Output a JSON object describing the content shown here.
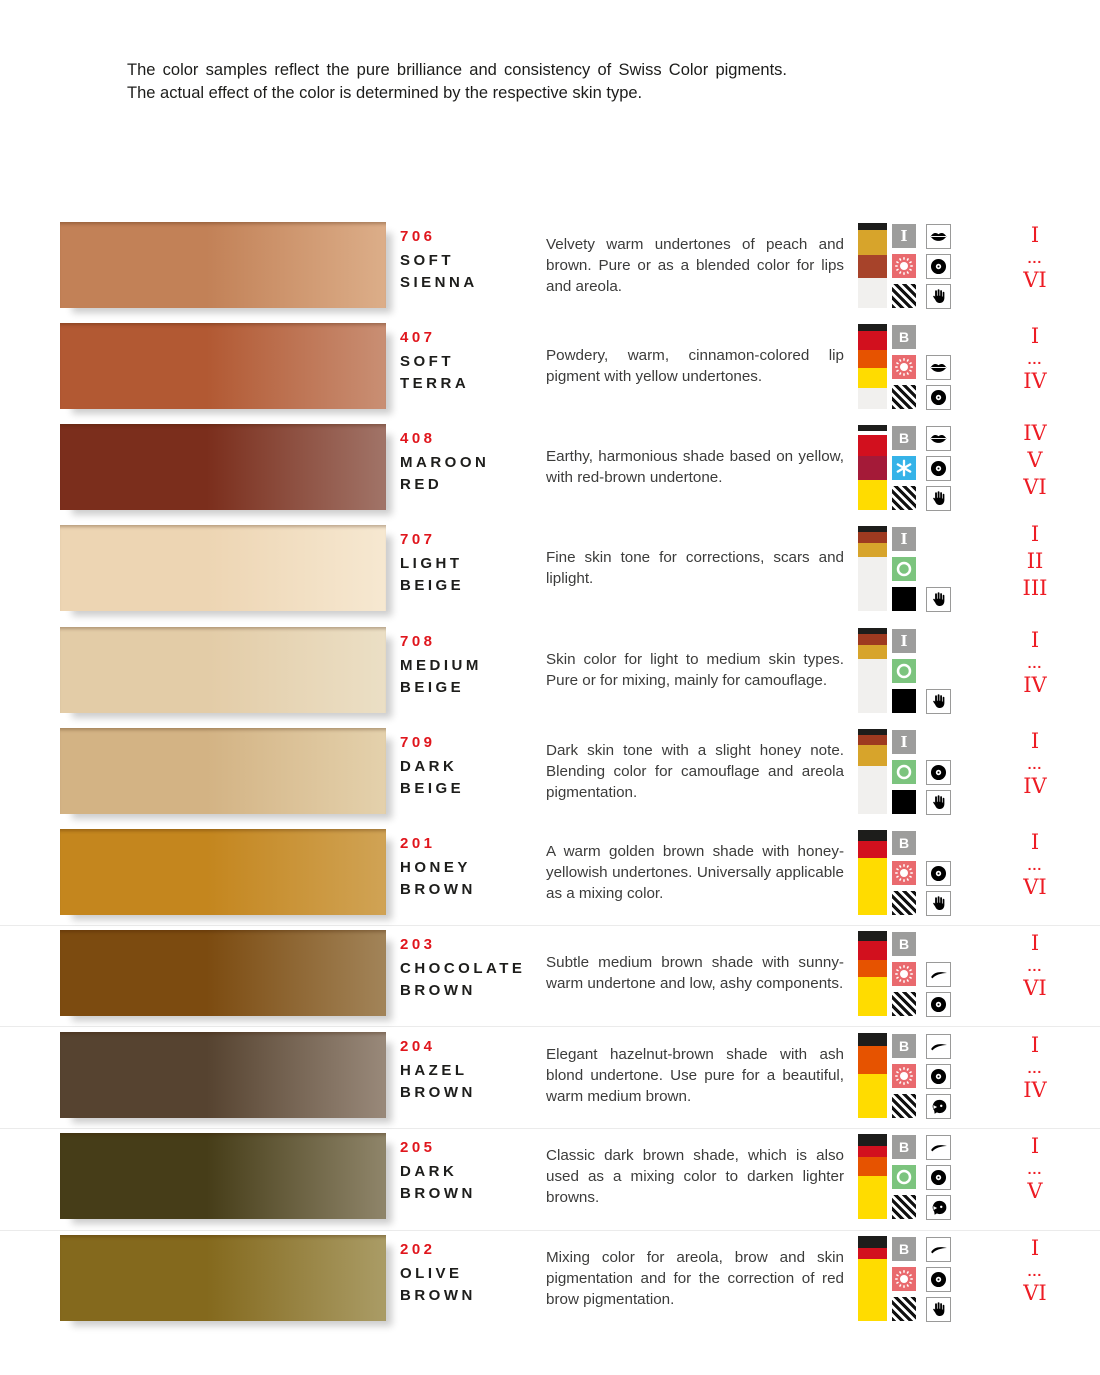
{
  "colors": {
    "accent_red": "#e0161d",
    "numeral_red": "#ed1c24",
    "text_dark": "#1d1d1b",
    "text_body": "#3c3c3b",
    "badge_gray": "#9d9d9c",
    "badge_pink": "#e96a6e",
    "badge_blue": "#35b3e8",
    "badge_green": "#7cc47e",
    "badge_black": "#000000"
  },
  "header": {
    "text": "The color samples reflect the pure brilliance and consistency of Swiss Color pigments. The actual effect of the color is determined by the respective skin type."
  },
  "icon_styles": {
    "badge-i": {
      "bg": "#9d9d9c"
    },
    "badge-b": {
      "bg": "#9d9d9c"
    },
    "sun": {
      "bg": "#e96a6e"
    },
    "snowflake": {
      "bg": "#35b3e8"
    },
    "ring": {
      "bg": "#7cc47e"
    },
    "black": {
      "bg": "#000000"
    },
    "stripes": {
      "bg": "stripes"
    }
  },
  "rows": [
    {
      "code": "706",
      "name": "SOFT SIENNA",
      "description": "Velvety warm undertones of peach and brown. Pure or as a blended color for lips and areola.",
      "swatch": {
        "from": "#c28157",
        "to": "#dcae89"
      },
      "composition": [
        {
          "color": "#1d1d1b",
          "pct": 8
        },
        {
          "color": "#d7a42b",
          "pct": 30
        },
        {
          "color": "#a7432a",
          "pct": 27
        },
        {
          "color": "#f1f0ee",
          "pct": 35
        }
      ],
      "badges": [
        "badge-i",
        "sun",
        "stripes"
      ],
      "areas": [
        "lips",
        "areola",
        "hand"
      ],
      "skin_types": [
        "I",
        "...",
        "VI"
      ]
    },
    {
      "code": "407",
      "name": "SOFT TERRA",
      "description": "Powdery, warm, cinnamon-colored lip pigment with yellow undertones.",
      "swatch": {
        "from": "#b25933",
        "to": "#c98f74"
      },
      "composition": [
        {
          "color": "#1d1d1b",
          "pct": 8
        },
        {
          "color": "#d2101e",
          "pct": 23
        },
        {
          "color": "#e65300",
          "pct": 21
        },
        {
          "color": "#ffdc00",
          "pct": 23
        },
        {
          "color": "#f1f0ee",
          "pct": 25
        }
      ],
      "badges": [
        "badge-b",
        "sun",
        "stripes"
      ],
      "areas": [
        null,
        "lips",
        "areola"
      ],
      "skin_types": [
        "I",
        "...",
        "IV"
      ]
    },
    {
      "code": "408",
      "name": "MAROON RED",
      "description": "Earthy, harmonious shade based on yellow, with red-brown undertone.",
      "swatch": {
        "from": "#7b2e1c",
        "to": "#a17468"
      },
      "composition": [
        {
          "color": "#1d1d1b",
          "pct": 7
        },
        {
          "color": "#ffffff",
          "pct": 5
        },
        {
          "color": "#d2101e",
          "pct": 24
        },
        {
          "color": "#a41a38",
          "pct": 29
        },
        {
          "color": "#ffdc00",
          "pct": 35
        }
      ],
      "badges": [
        "badge-b",
        "snowflake",
        "stripes"
      ],
      "areas": [
        "lips",
        "areola",
        "hand"
      ],
      "skin_types": [
        "IV",
        "V",
        "VI"
      ]
    },
    {
      "code": "707",
      "name": "LIGHT BEIGE",
      "description": "Fine skin tone for corrections, scars and liplight.",
      "swatch": {
        "from": "#edd5b3",
        "to": "#f6e8d1"
      },
      "composition": [
        {
          "color": "#1d1d1b",
          "pct": 7
        },
        {
          "color": "#9e3a20",
          "pct": 13
        },
        {
          "color": "#d7a42b",
          "pct": 16
        },
        {
          "color": "#f1f0ee",
          "pct": 64
        }
      ],
      "badges": [
        "badge-i",
        "ring",
        "black"
      ],
      "areas": [
        null,
        null,
        "hand"
      ],
      "skin_types": [
        "I",
        "II",
        "III"
      ]
    },
    {
      "code": "708",
      "name": "MEDIUM BEIGE",
      "description": "Skin color for light to medium skin types. Pure or for mixing, mainly for camouflage.",
      "swatch": {
        "from": "#e3cca7",
        "to": "#ebdfc5"
      },
      "composition": [
        {
          "color": "#1d1d1b",
          "pct": 7
        },
        {
          "color": "#9e3a20",
          "pct": 13
        },
        {
          "color": "#d7a42b",
          "pct": 16
        },
        {
          "color": "#f1f0ee",
          "pct": 64
        }
      ],
      "badges": [
        "badge-i",
        "ring",
        "black"
      ],
      "areas": [
        null,
        null,
        "hand"
      ],
      "skin_types": [
        "I",
        "...",
        "IV"
      ]
    },
    {
      "code": "709",
      "name": "DARK BEIGE",
      "description": "Dark skin tone with a slight honey note. Blending color for camouflage and areola pigmentation.",
      "swatch": {
        "from": "#d3b384",
        "to": "#e4d1ac"
      },
      "composition": [
        {
          "color": "#1d1d1b",
          "pct": 7
        },
        {
          "color": "#9e3a20",
          "pct": 12
        },
        {
          "color": "#d7a42b",
          "pct": 24
        },
        {
          "color": "#f1f0ee",
          "pct": 57
        }
      ],
      "badges": [
        "badge-i",
        "ring",
        "black"
      ],
      "areas": [
        null,
        "areola",
        "hand"
      ],
      "skin_types": [
        "I",
        "...",
        "IV"
      ]
    },
    {
      "code": "201",
      "name": "HONEY BROWN",
      "description": "A warm golden brown shade with honey-yellowish undertones. Universally applicable as a mixing color.",
      "swatch": {
        "from": "#c4861e",
        "to": "#d0a355"
      },
      "composition": [
        {
          "color": "#1d1d1b",
          "pct": 13
        },
        {
          "color": "#d2101e",
          "pct": 20
        },
        {
          "color": "#ffdc00",
          "pct": 67
        }
      ],
      "badges": [
        "badge-b",
        "sun",
        "stripes"
      ],
      "areas": [
        null,
        "areola",
        "hand"
      ],
      "skin_types": [
        "I",
        "...",
        "VI"
      ]
    },
    {
      "code": "203",
      "name": "CHOCOLATE BROWN",
      "description": "Subtle medium brown shade with sunny-warm undertone and low, ashy components.",
      "swatch": {
        "from": "#7c4b10",
        "to": "#a28459"
      },
      "composition": [
        {
          "color": "#1d1d1b",
          "pct": 12
        },
        {
          "color": "#d2101e",
          "pct": 22
        },
        {
          "color": "#e65300",
          "pct": 20
        },
        {
          "color": "#ffdc00",
          "pct": 46
        }
      ],
      "badges": [
        "badge-b",
        "sun",
        "stripes"
      ],
      "areas": [
        null,
        "eyebrow",
        "areola"
      ],
      "skin_types": [
        "I",
        "...",
        "VI"
      ]
    },
    {
      "code": "204",
      "name": "HAZEL BROWN",
      "description": "Elegant hazelnut-brown shade with ash blond undertone. Use pure for a beautiful, warm medium brown.",
      "swatch": {
        "from": "#564330",
        "to": "#99897a"
      },
      "composition": [
        {
          "color": "#1d1d1b",
          "pct": 15
        },
        {
          "color": "#e65300",
          "pct": 33
        },
        {
          "color": "#ffdc00",
          "pct": 52
        }
      ],
      "badges": [
        "badge-b",
        "sun",
        "stripes"
      ],
      "areas": [
        "eyebrow",
        "areola",
        "head"
      ],
      "skin_types": [
        "I",
        "...",
        "IV"
      ]
    },
    {
      "code": "205",
      "name": "DARK BROWN",
      "description": "Classic dark brown shade, which is also used as a mixing color to darken lighter browns.",
      "swatch": {
        "from": "#463d18",
        "to": "#8f856a"
      },
      "composition": [
        {
          "color": "#1d1d1b",
          "pct": 14
        },
        {
          "color": "#d2101e",
          "pct": 13
        },
        {
          "color": "#e65300",
          "pct": 22
        },
        {
          "color": "#ffdc00",
          "pct": 51
        }
      ],
      "badges": [
        "badge-b",
        "ring",
        "stripes"
      ],
      "areas": [
        "eyebrow",
        "areola",
        "head"
      ],
      "skin_types": [
        "I",
        "...",
        "V"
      ]
    },
    {
      "code": "202",
      "name": "OLIVE BROWN",
      "description": "Mixing color for areola, brow and skin pigmentation and for the correction of red brow pigmentation.",
      "swatch": {
        "from": "#84691d",
        "to": "#aa9c66"
      },
      "composition": [
        {
          "color": "#1d1d1b",
          "pct": 14
        },
        {
          "color": "#d2101e",
          "pct": 13
        },
        {
          "color": "#ffdc00",
          "pct": 73
        }
      ],
      "badges": [
        "badge-b",
        "sun",
        "stripes"
      ],
      "areas": [
        "eyebrow",
        "areola",
        "hand"
      ],
      "skin_types": [
        "I",
        "...",
        "VI"
      ]
    }
  ]
}
